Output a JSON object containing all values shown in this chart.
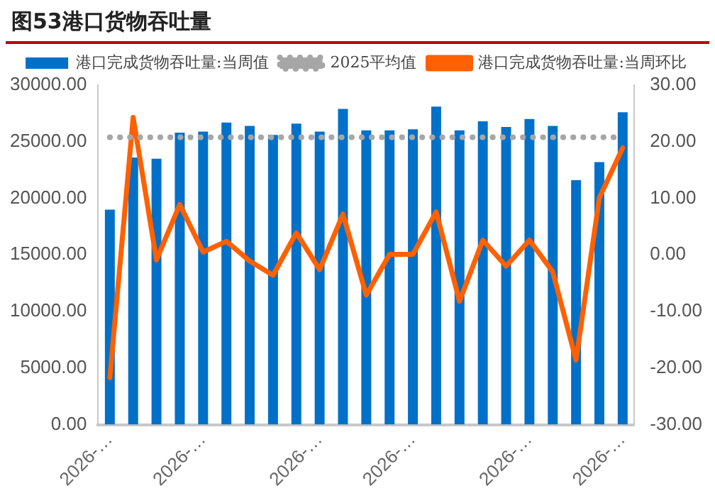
{
  "chart_data": {
    "type": "bar",
    "title": "图53港口货物吞吐量",
    "categories": [
      "2026-…",
      null,
      null,
      null,
      "2026-…",
      null,
      null,
      null,
      null,
      "2026-…",
      null,
      null,
      null,
      "2026-…",
      null,
      null,
      null,
      null,
      "2026-…",
      null,
      null,
      null,
      "2026-…"
    ],
    "series": [
      {
        "name": "港口完成货物吞吐量:当周值",
        "color": "#0070c8",
        "values": [
          19000,
          23600,
          23500,
          25800,
          25900,
          26700,
          26400,
          25600,
          26600,
          25900,
          27900,
          26000,
          26000,
          26100,
          28100,
          26000,
          26800,
          26300,
          27000,
          26400,
          21600,
          23200,
          27600
        ]
      },
      {
        "name": "2025平均值",
        "type": "line",
        "color": "#a6a6a6",
        "line_style": "dotted",
        "marker": "none",
        "values": [
          25400,
          25400,
          25400,
          25400,
          25400,
          25400,
          25400,
          25400,
          25400,
          25400,
          25400,
          25400,
          25400,
          25400,
          25400,
          25400,
          25400,
          25400,
          25400,
          25400,
          25400,
          25400,
          25400
        ]
      },
      {
        "name": "港口完成货物吞吐量:当周环比",
        "type": "line",
        "axis": "y2",
        "color": "#ff6000",
        "line_style": "solid",
        "marker": "none",
        "values": [
          -21.7,
          24.3,
          -0.9,
          8.9,
          0.5,
          2.4,
          -1.1,
          -3.6,
          3.9,
          -2.6,
          7.2,
          -7.1,
          0.1,
          0.1,
          7.6,
          -8.2,
          2.6,
          -2.0,
          2.6,
          -3.0,
          -18.6,
          10.1,
          18.9
        ]
      }
    ],
    "ylim": [
      0,
      30000
    ],
    "yticks": [
      {
        "value": 0,
        "label": "0.00"
      },
      {
        "value": 5000,
        "label": "5000.00"
      },
      {
        "value": 10000,
        "label": "10000.00"
      },
      {
        "value": 15000,
        "label": "15000.00"
      },
      {
        "value": 20000,
        "label": "20000.00"
      },
      {
        "value": 25000,
        "label": "25000.00"
      },
      {
        "value": 30000,
        "label": "30000.00"
      }
    ],
    "y2lim": [
      -30,
      30
    ],
    "y2ticks": [
      {
        "value": -30,
        "label": "-30.00"
      },
      {
        "value": -20,
        "label": "-20.00"
      },
      {
        "value": -10,
        "label": "-10.00"
      },
      {
        "value": 0,
        "label": "0.00"
      },
      {
        "value": 10,
        "label": "10.00"
      },
      {
        "value": 20,
        "label": "20.00"
      },
      {
        "value": 30,
        "label": "30.00"
      }
    ],
    "grid": false,
    "legend": "top"
  }
}
